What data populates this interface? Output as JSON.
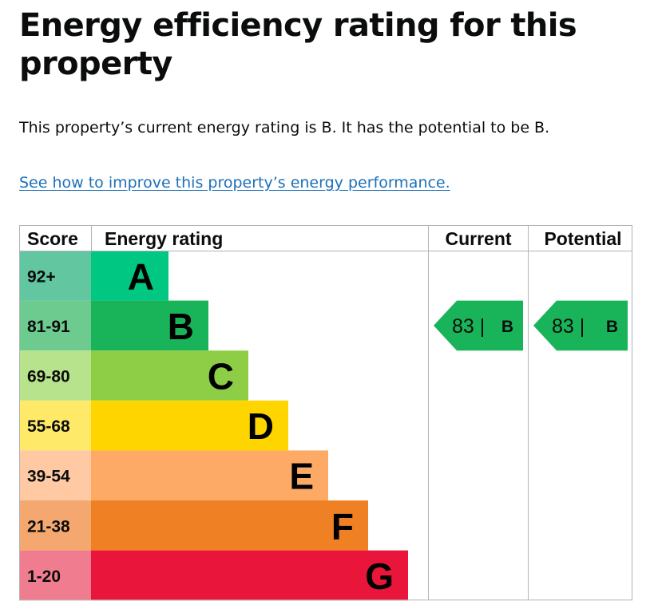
{
  "page": {
    "title": "Energy efficiency rating for this property",
    "summary": "This property’s current energy rating is B. It has the potential to be B.",
    "improve_link": "See how to improve this property’s energy performance."
  },
  "chart_data": {
    "type": "table",
    "title": "Energy efficiency rating for this property",
    "headers": {
      "score": "Score",
      "rating": "Energy rating",
      "current": "Current",
      "potential": "Potential"
    },
    "bands": [
      {
        "letter": "A",
        "score": "92+",
        "color": "#00c781",
        "score_color": "#62c6a1"
      },
      {
        "letter": "B",
        "score": "81-91",
        "color": "#19b459",
        "score_color": "#6dcb8f"
      },
      {
        "letter": "C",
        "score": "69-80",
        "color": "#8dce46",
        "score_color": "#b7e38d"
      },
      {
        "letter": "D",
        "score": "55-68",
        "color": "#ffd500",
        "score_color": "#ffe969"
      },
      {
        "letter": "E",
        "score": "39-54",
        "color": "#fcaa65",
        "score_color": "#fec9a3"
      },
      {
        "letter": "F",
        "score": "21-38",
        "color": "#ef8023",
        "score_color": "#f4a870"
      },
      {
        "letter": "G",
        "score": "1-20",
        "color": "#e9153b",
        "score_color": "#f07d8f"
      }
    ],
    "current": {
      "value": 83,
      "band": "B",
      "label_num": "83 |",
      "label_band": "B"
    },
    "potential": {
      "value": 83,
      "band": "B",
      "label_num": "83 |",
      "label_band": "B"
    }
  }
}
